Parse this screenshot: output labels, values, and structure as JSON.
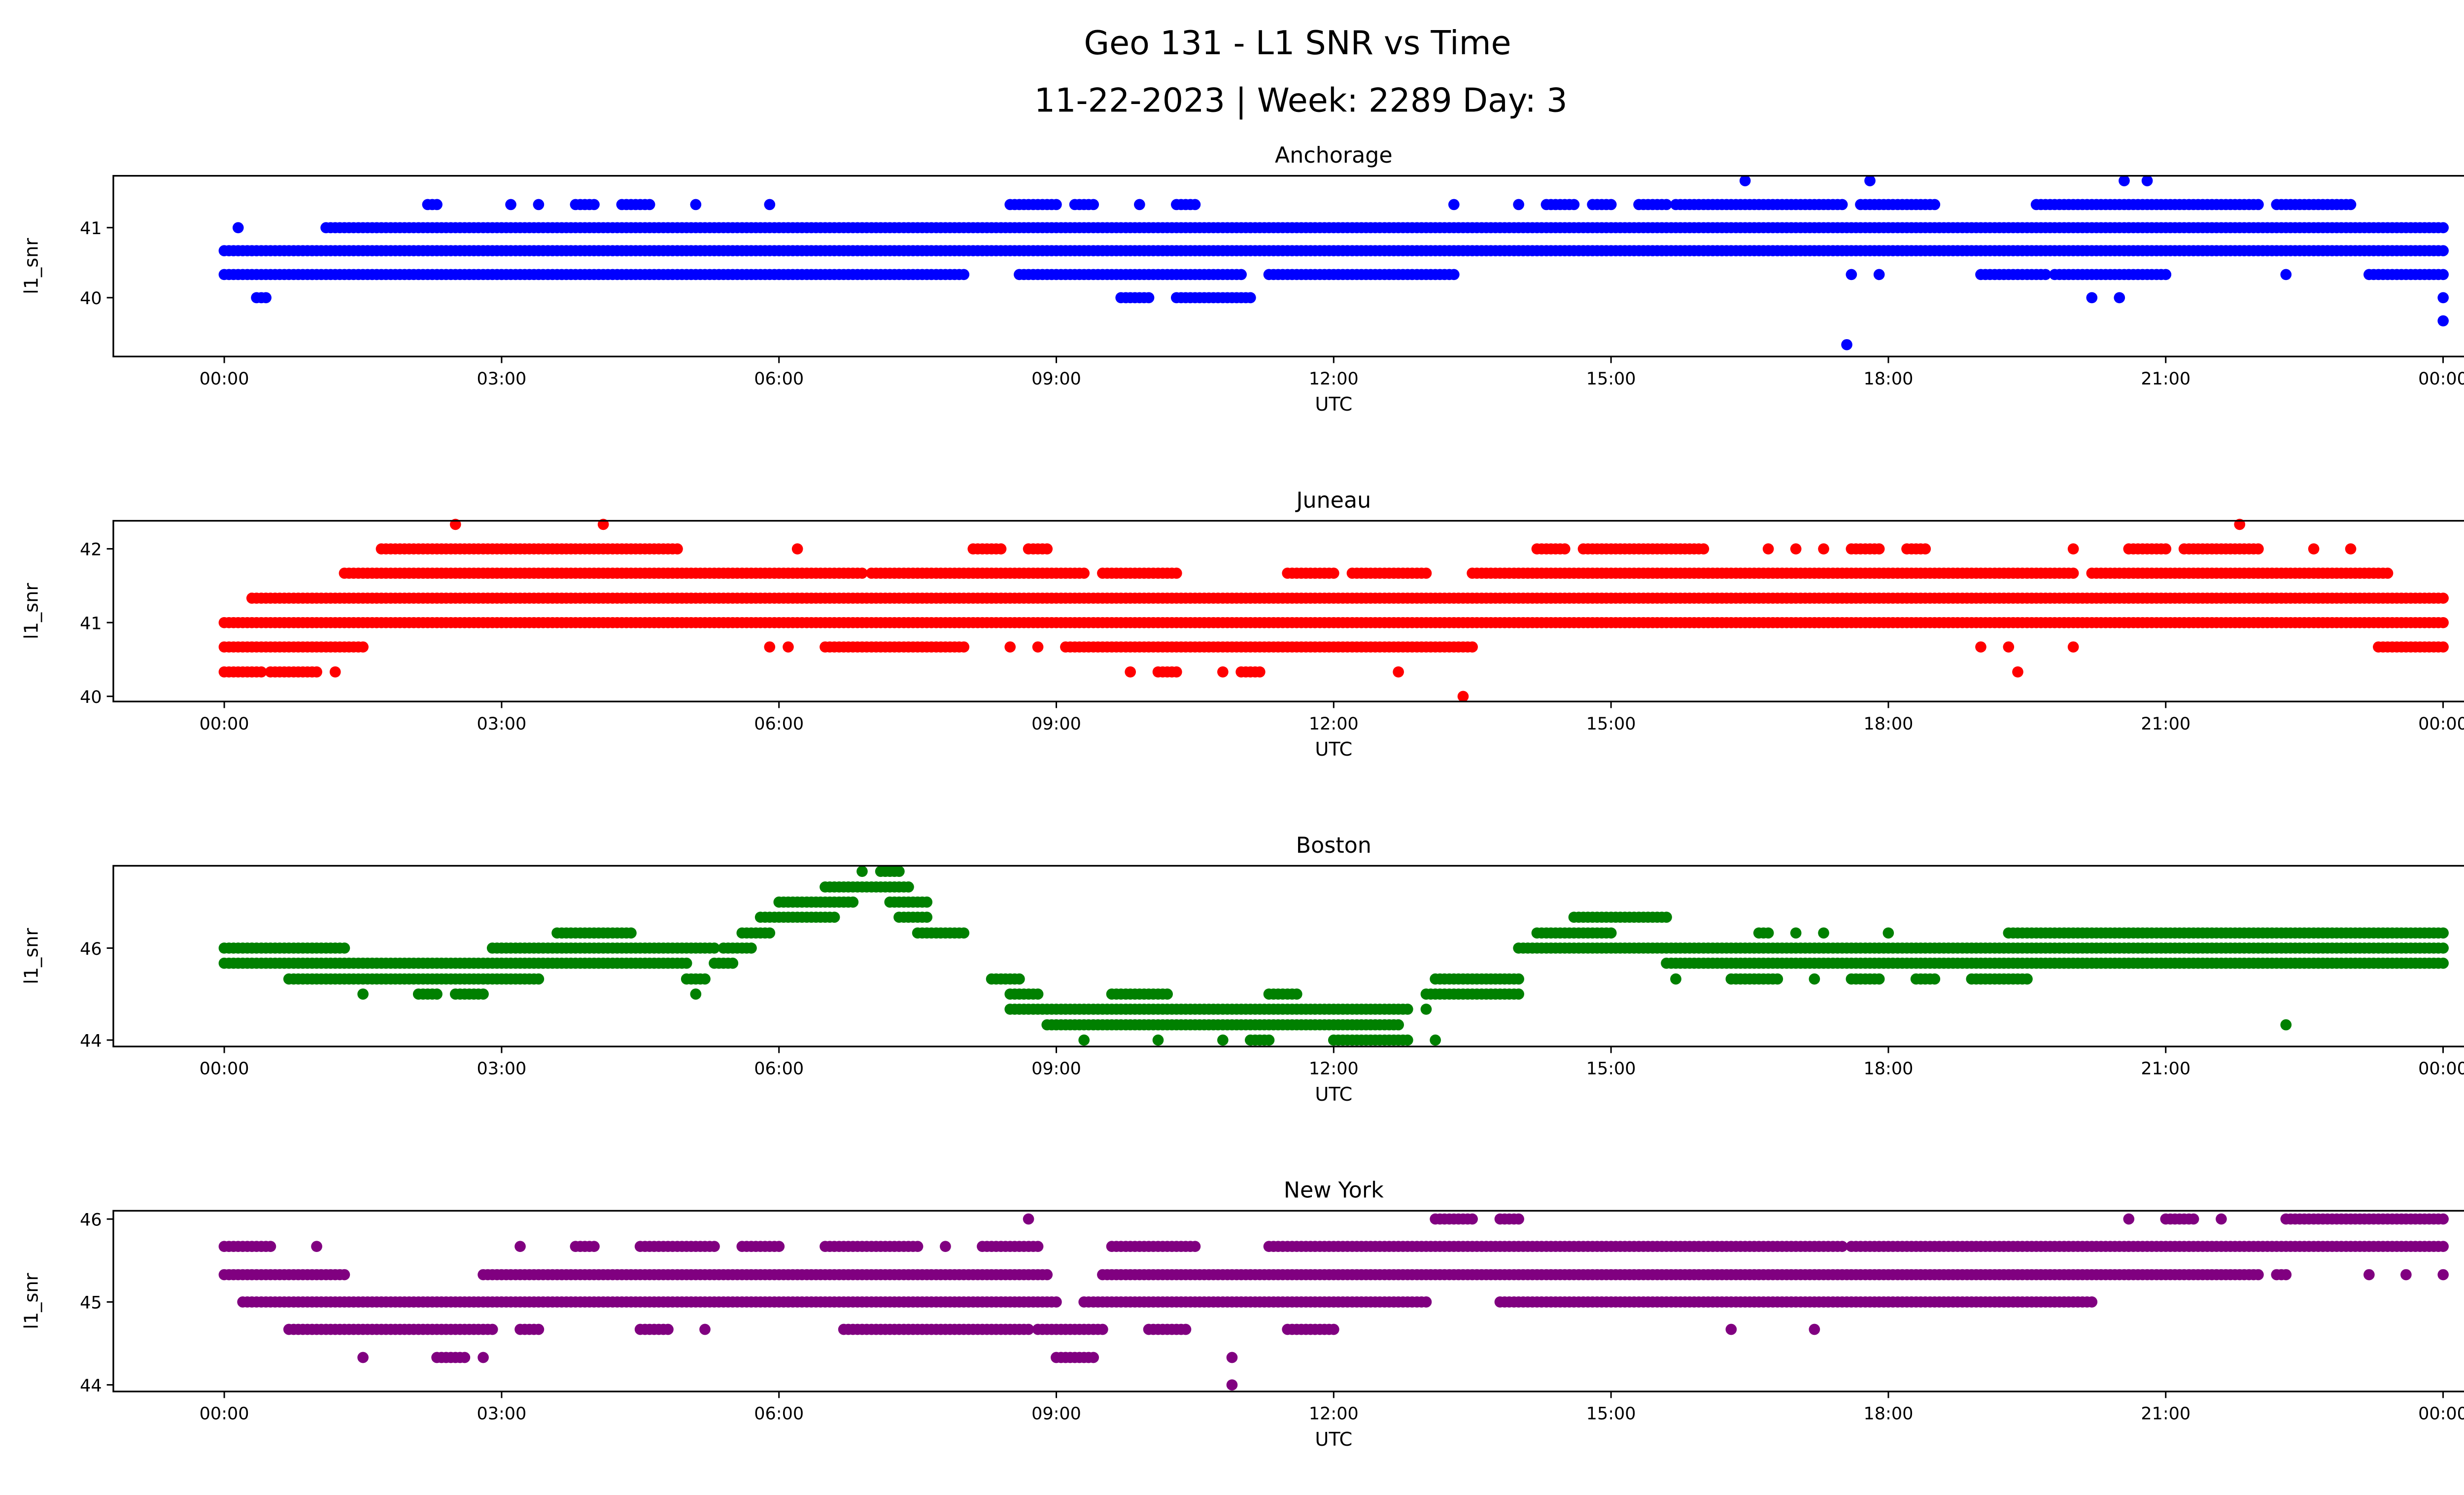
{
  "title_line1": "Geo 131 - L1 SNR vs Time",
  "title_line2": "11-22-2023 | Week: 2289 Day: 3",
  "chart_data": [
    {
      "type": "scatter",
      "title": "Anchorage",
      "xlabel": "UTC",
      "ylabel": "l1_snr",
      "color": "#0000ff",
      "xlim_hours": [
        -1.2,
        25.2
      ],
      "xticks": [
        0,
        3,
        6,
        9,
        12,
        15,
        18,
        21,
        24
      ],
      "xtick_labels": [
        "00:00",
        "03:00",
        "06:00",
        "09:00",
        "12:00",
        "15:00",
        "18:00",
        "21:00",
        "00:00"
      ],
      "ylim": [
        39.16,
        41.74
      ],
      "yticks": [
        40,
        41
      ],
      "levels": [
        {
          "y": 40.67,
          "ranges": [
            [
              0,
              24
            ]
          ]
        },
        {
          "y": 41.0,
          "ranges": [
            [
              0.15,
              0.15
            ],
            [
              1.1,
              24
            ]
          ]
        },
        {
          "y": 40.33,
          "ranges": [
            [
              0,
              8
            ],
            [
              8.6,
              11
            ],
            [
              11.3,
              13.3
            ],
            [
              17.6,
              17.6
            ],
            [
              17.9,
              17.9
            ],
            [
              19,
              19.7
            ],
            [
              19.8,
              21
            ],
            [
              22.3,
              22.3
            ],
            [
              23.2,
              24
            ]
          ]
        },
        {
          "y": 40.0,
          "ranges": [
            [
              0.35,
              0.45
            ],
            [
              9.7,
              10.0
            ],
            [
              10.3,
              11.1
            ],
            [
              20.2,
              20.2
            ],
            [
              20.5,
              20.5
            ],
            [
              24,
              24
            ]
          ]
        },
        {
          "y": 41.33,
          "ranges": [
            [
              2.2,
              2.3
            ],
            [
              3.1,
              3.1
            ],
            [
              3.4,
              3.4
            ],
            [
              3.8,
              4.0
            ],
            [
              4.3,
              4.6
            ],
            [
              5.1,
              5.1
            ],
            [
              5.9,
              5.9
            ],
            [
              8.5,
              9.0
            ],
            [
              9.2,
              9.4
            ],
            [
              9.9,
              9.9
            ],
            [
              10.3,
              10.5
            ],
            [
              13.3,
              13.3
            ],
            [
              14.0,
              14.0
            ],
            [
              14.3,
              14.6
            ],
            [
              14.8,
              15.0
            ],
            [
              15.3,
              15.6
            ],
            [
              15.7,
              17.5
            ],
            [
              17.7,
              18.5
            ],
            [
              19.6,
              22.0
            ],
            [
              22.2,
              23.0
            ]
          ]
        },
        {
          "y": 41.67,
          "ranges": [
            [
              16.45,
              16.45
            ],
            [
              17.8,
              17.8
            ],
            [
              20.55,
              20.55
            ],
            [
              20.8,
              20.8
            ]
          ]
        },
        {
          "y": 39.33,
          "ranges": [
            [
              17.55,
              17.55
            ]
          ]
        },
        {
          "y": 39.67,
          "ranges": [
            [
              24,
              24
            ]
          ]
        }
      ]
    },
    {
      "type": "scatter",
      "title": "Juneau",
      "xlabel": "UTC",
      "ylabel": "l1_snr",
      "color": "#ff0000",
      "xlim_hours": [
        -1.2,
        25.2
      ],
      "xticks": [
        0,
        3,
        6,
        9,
        12,
        15,
        18,
        21,
        24
      ],
      "xtick_labels": [
        "00:00",
        "03:00",
        "06:00",
        "09:00",
        "12:00",
        "15:00",
        "18:00",
        "21:00",
        "00:00"
      ],
      "ylim": [
        39.93,
        42.38
      ],
      "yticks": [
        40,
        41,
        42
      ],
      "levels": [
        {
          "y": 41.33,
          "ranges": [
            [
              0.3,
              24
            ]
          ]
        },
        {
          "y": 41.0,
          "ranges": [
            [
              0,
              24
            ]
          ]
        },
        {
          "y": 41.67,
          "ranges": [
            [
              1.3,
              6.9
            ],
            [
              7.0,
              9.3
            ],
            [
              9.5,
              10.3
            ],
            [
              11.5,
              12.0
            ],
            [
              12.2,
              13.0
            ],
            [
              13.5,
              20.0
            ],
            [
              20.2,
              23.4
            ]
          ]
        },
        {
          "y": 40.67,
          "ranges": [
            [
              0,
              1.5
            ],
            [
              5.9,
              5.9
            ],
            [
              6.1,
              6.1
            ],
            [
              6.5,
              8.0
            ],
            [
              8.5,
              8.5
            ],
            [
              8.8,
              8.8
            ],
            [
              9.1,
              13.5
            ],
            [
              19.0,
              19.0
            ],
            [
              19.3,
              19.3
            ],
            [
              20.0,
              20.0
            ],
            [
              23.3,
              24
            ]
          ]
        },
        {
          "y": 40.33,
          "ranges": [
            [
              0,
              0.4
            ],
            [
              0.5,
              1.0
            ],
            [
              1.2,
              1.2
            ],
            [
              9.8,
              9.8
            ],
            [
              10.1,
              10.3
            ],
            [
              10.8,
              10.8
            ],
            [
              11.0,
              11.2
            ],
            [
              12.7,
              12.7
            ],
            [
              19.4,
              19.4
            ]
          ]
        },
        {
          "y": 42.0,
          "ranges": [
            [
              1.7,
              4.9
            ],
            [
              6.2,
              6.2
            ],
            [
              8.1,
              8.4
            ],
            [
              8.7,
              8.9
            ],
            [
              14.2,
              14.5
            ],
            [
              14.7,
              16.0
            ],
            [
              16.7,
              16.7
            ],
            [
              17.0,
              17.0
            ],
            [
              17.3,
              17.3
            ],
            [
              17.6,
              17.9
            ],
            [
              18.2,
              18.4
            ],
            [
              20.0,
              20.0
            ],
            [
              20.6,
              21.0
            ],
            [
              21.2,
              22.0
            ],
            [
              22.6,
              22.6
            ],
            [
              23.0,
              23.0
            ]
          ]
        },
        {
          "y": 42.33,
          "ranges": [
            [
              2.5,
              2.5
            ],
            [
              4.1,
              4.1
            ],
            [
              21.8,
              21.8
            ]
          ]
        },
        {
          "y": 40.0,
          "ranges": [
            [
              13.4,
              13.4
            ]
          ]
        }
      ]
    },
    {
      "type": "scatter",
      "title": "Boston",
      "xlabel": "UTC",
      "ylabel": "l1_snr",
      "color": "#008000",
      "xlim_hours": [
        -1.2,
        25.2
      ],
      "xticks": [
        0,
        3,
        6,
        9,
        12,
        15,
        18,
        21,
        24
      ],
      "xtick_labels": [
        "00:00",
        "03:00",
        "06:00",
        "09:00",
        "12:00",
        "15:00",
        "18:00",
        "21:00",
        "00:00"
      ],
      "ylim": [
        43.86,
        47.79
      ],
      "yticks": [
        44,
        46
      ],
      "levels": [
        {
          "y": 46.0,
          "ranges": [
            [
              0,
              1.3
            ],
            [
              2.9,
              5.3
            ],
            [
              5.4,
              5.7
            ],
            [
              14.0,
              24
            ]
          ]
        },
        {
          "y": 45.67,
          "ranges": [
            [
              0,
              5.0
            ],
            [
              5.3,
              5.5
            ],
            [
              15.6,
              24
            ]
          ]
        },
        {
          "y": 45.33,
          "ranges": [
            [
              0.7,
              3.4
            ],
            [
              5.0,
              5.2
            ],
            [
              8.3,
              8.6
            ],
            [
              13.1,
              14.0
            ],
            [
              15.7,
              15.7
            ],
            [
              16.3,
              16.8
            ],
            [
              17.2,
              17.2
            ],
            [
              17.6,
              17.9
            ],
            [
              18.3,
              18.5
            ],
            [
              18.9,
              19.5
            ]
          ]
        },
        {
          "y": 45.0,
          "ranges": [
            [
              1.5,
              1.5
            ],
            [
              2.1,
              2.3
            ],
            [
              2.5,
              2.8
            ],
            [
              5.1,
              5.1
            ],
            [
              8.5,
              8.8
            ],
            [
              9.6,
              10.2
            ],
            [
              11.3,
              11.6
            ],
            [
              13.0,
              14.0
            ]
          ]
        },
        {
          "y": 46.33,
          "ranges": [
            [
              3.6,
              4.4
            ],
            [
              5.6,
              5.9
            ],
            [
              7.5,
              8.0
            ],
            [
              14.2,
              15.0
            ],
            [
              16.6,
              16.7
            ],
            [
              17.0,
              17.0
            ],
            [
              17.3,
              17.3
            ],
            [
              18.0,
              18.0
            ],
            [
              19.3,
              24
            ]
          ]
        },
        {
          "y": 46.67,
          "ranges": [
            [
              5.8,
              6.6
            ],
            [
              7.3,
              7.6
            ],
            [
              14.6,
              15.6
            ]
          ]
        },
        {
          "y": 47.0,
          "ranges": [
            [
              6.0,
              6.8
            ],
            [
              7.2,
              7.6
            ]
          ]
        },
        {
          "y": 47.33,
          "ranges": [
            [
              6.5,
              7.4
            ]
          ]
        },
        {
          "y": 47.67,
          "ranges": [
            [
              6.9,
              6.9
            ],
            [
              7.1,
              7.3
            ]
          ]
        },
        {
          "y": 44.67,
          "ranges": [
            [
              8.5,
              12.8
            ],
            [
              13.0,
              13.0
            ]
          ]
        },
        {
          "y": 44.33,
          "ranges": [
            [
              8.9,
              12.7
            ],
            [
              22.3,
              22.3
            ]
          ]
        },
        {
          "y": 44.0,
          "ranges": [
            [
              9.3,
              9.3
            ],
            [
              10.1,
              10.1
            ],
            [
              10.8,
              10.8
            ],
            [
              11.1,
              11.3
            ],
            [
              12.0,
              12.8
            ],
            [
              13.1,
              13.1
            ]
          ]
        }
      ]
    },
    {
      "type": "scatter",
      "title": "New York",
      "xlabel": "UTC",
      "ylabel": "l1_snr",
      "color": "#800080",
      "xlim_hours": [
        -1.2,
        25.2
      ],
      "xticks": [
        0,
        3,
        6,
        9,
        12,
        15,
        18,
        21,
        24
      ],
      "xtick_labels": [
        "00:00",
        "03:00",
        "06:00",
        "09:00",
        "12:00",
        "15:00",
        "18:00",
        "21:00",
        "00:00"
      ],
      "ylim": [
        43.92,
        46.1
      ],
      "yticks": [
        44,
        45,
        46
      ],
      "levels": [
        {
          "y": 45.33,
          "ranges": [
            [
              0,
              1.3
            ],
            [
              2.8,
              8.9
            ],
            [
              9.5,
              22.0
            ],
            [
              22.2,
              22.3
            ],
            [
              23.2,
              23.2
            ],
            [
              23.6,
              23.6
            ],
            [
              24,
              24
            ]
          ]
        },
        {
          "y": 45.67,
          "ranges": [
            [
              0,
              0.5
            ],
            [
              1.0,
              1.0
            ],
            [
              3.2,
              3.2
            ],
            [
              3.8,
              4.0
            ],
            [
              4.5,
              5.3
            ],
            [
              5.6,
              6.0
            ],
            [
              6.5,
              7.5
            ],
            [
              7.8,
              7.8
            ],
            [
              8.2,
              8.8
            ],
            [
              9.6,
              10.5
            ],
            [
              11.3,
              17.5
            ],
            [
              17.6,
              24
            ]
          ]
        },
        {
          "y": 45.0,
          "ranges": [
            [
              0.2,
              9.0
            ],
            [
              9.3,
              13.0
            ],
            [
              13.8,
              20.2
            ]
          ]
        },
        {
          "y": 44.67,
          "ranges": [
            [
              0.7,
              2.9
            ],
            [
              3.2,
              3.4
            ],
            [
              4.5,
              4.8
            ],
            [
              5.2,
              5.2
            ],
            [
              6.7,
              8.7
            ],
            [
              8.8,
              9.5
            ],
            [
              10.0,
              10.4
            ],
            [
              11.5,
              12.0
            ],
            [
              16.3,
              16.3
            ],
            [
              17.2,
              17.2
            ]
          ]
        },
        {
          "y": 44.33,
          "ranges": [
            [
              1.5,
              1.5
            ],
            [
              2.3,
              2.6
            ],
            [
              2.8,
              2.8
            ],
            [
              9.0,
              9.4
            ],
            [
              10.9,
              10.9
            ]
          ]
        },
        {
          "y": 44.0,
          "ranges": [
            [
              10.9,
              10.9
            ]
          ]
        },
        {
          "y": 46.0,
          "ranges": [
            [
              8.7,
              8.7
            ],
            [
              13.1,
              13.5
            ],
            [
              13.8,
              14.0
            ],
            [
              20.6,
              20.6
            ],
            [
              21.0,
              21.3
            ],
            [
              21.6,
              21.6
            ],
            [
              22.3,
              24
            ]
          ]
        }
      ]
    }
  ]
}
